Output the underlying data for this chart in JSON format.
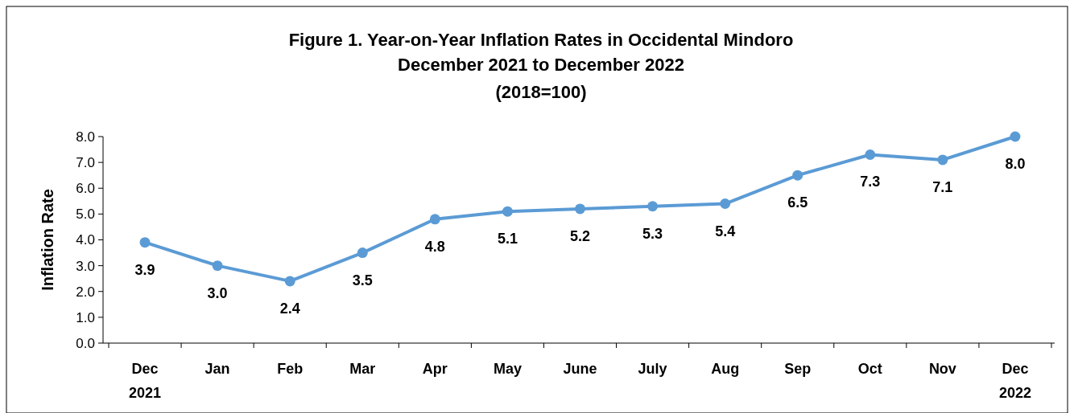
{
  "chart_data": {
    "type": "line",
    "title": "Figure 1. Year-on-Year Inflation Rates in Occidental Mindoro\nDecember 2021 to December 2022",
    "subtitle": "(2018=100)",
    "ylabel": "Inflation Rate",
    "categories": [
      "Dec 2021",
      "Jan",
      "Feb",
      "Mar",
      "Apr",
      "May",
      "June",
      "July",
      "Aug",
      "Sep",
      "Oct",
      "Nov",
      "Dec 2022"
    ],
    "series": [
      {
        "color": "#5b9bd5",
        "values": [
          3.9,
          3.0,
          2.4,
          3.5,
          4.8,
          5.1,
          5.2,
          5.3,
          5.4,
          6.5,
          7.3,
          7.1,
          8.0
        ],
        "value_labels": [
          "3.9",
          "3.0",
          "2.4",
          "3.5",
          "4.8",
          "5.1",
          "5.2",
          "5.3",
          "5.4",
          "6.5",
          "7.3",
          "7.1",
          "8.0"
        ]
      }
    ],
    "ylim": [
      0,
      8
    ],
    "yticks": [
      {
        "value": 0,
        "label": "0.0"
      },
      {
        "value": 1,
        "label": "1.0"
      },
      {
        "value": 2,
        "label": "2.0"
      },
      {
        "value": 3,
        "label": "3.0"
      },
      {
        "value": 4,
        "label": "4.0"
      },
      {
        "value": 5,
        "label": "5.0"
      },
      {
        "value": 6,
        "label": "6.0"
      },
      {
        "value": 7,
        "label": "7.0"
      },
      {
        "value": 8,
        "label": "8.0"
      }
    ],
    "marker": "circle",
    "line_style": "solid",
    "grid": false
  }
}
